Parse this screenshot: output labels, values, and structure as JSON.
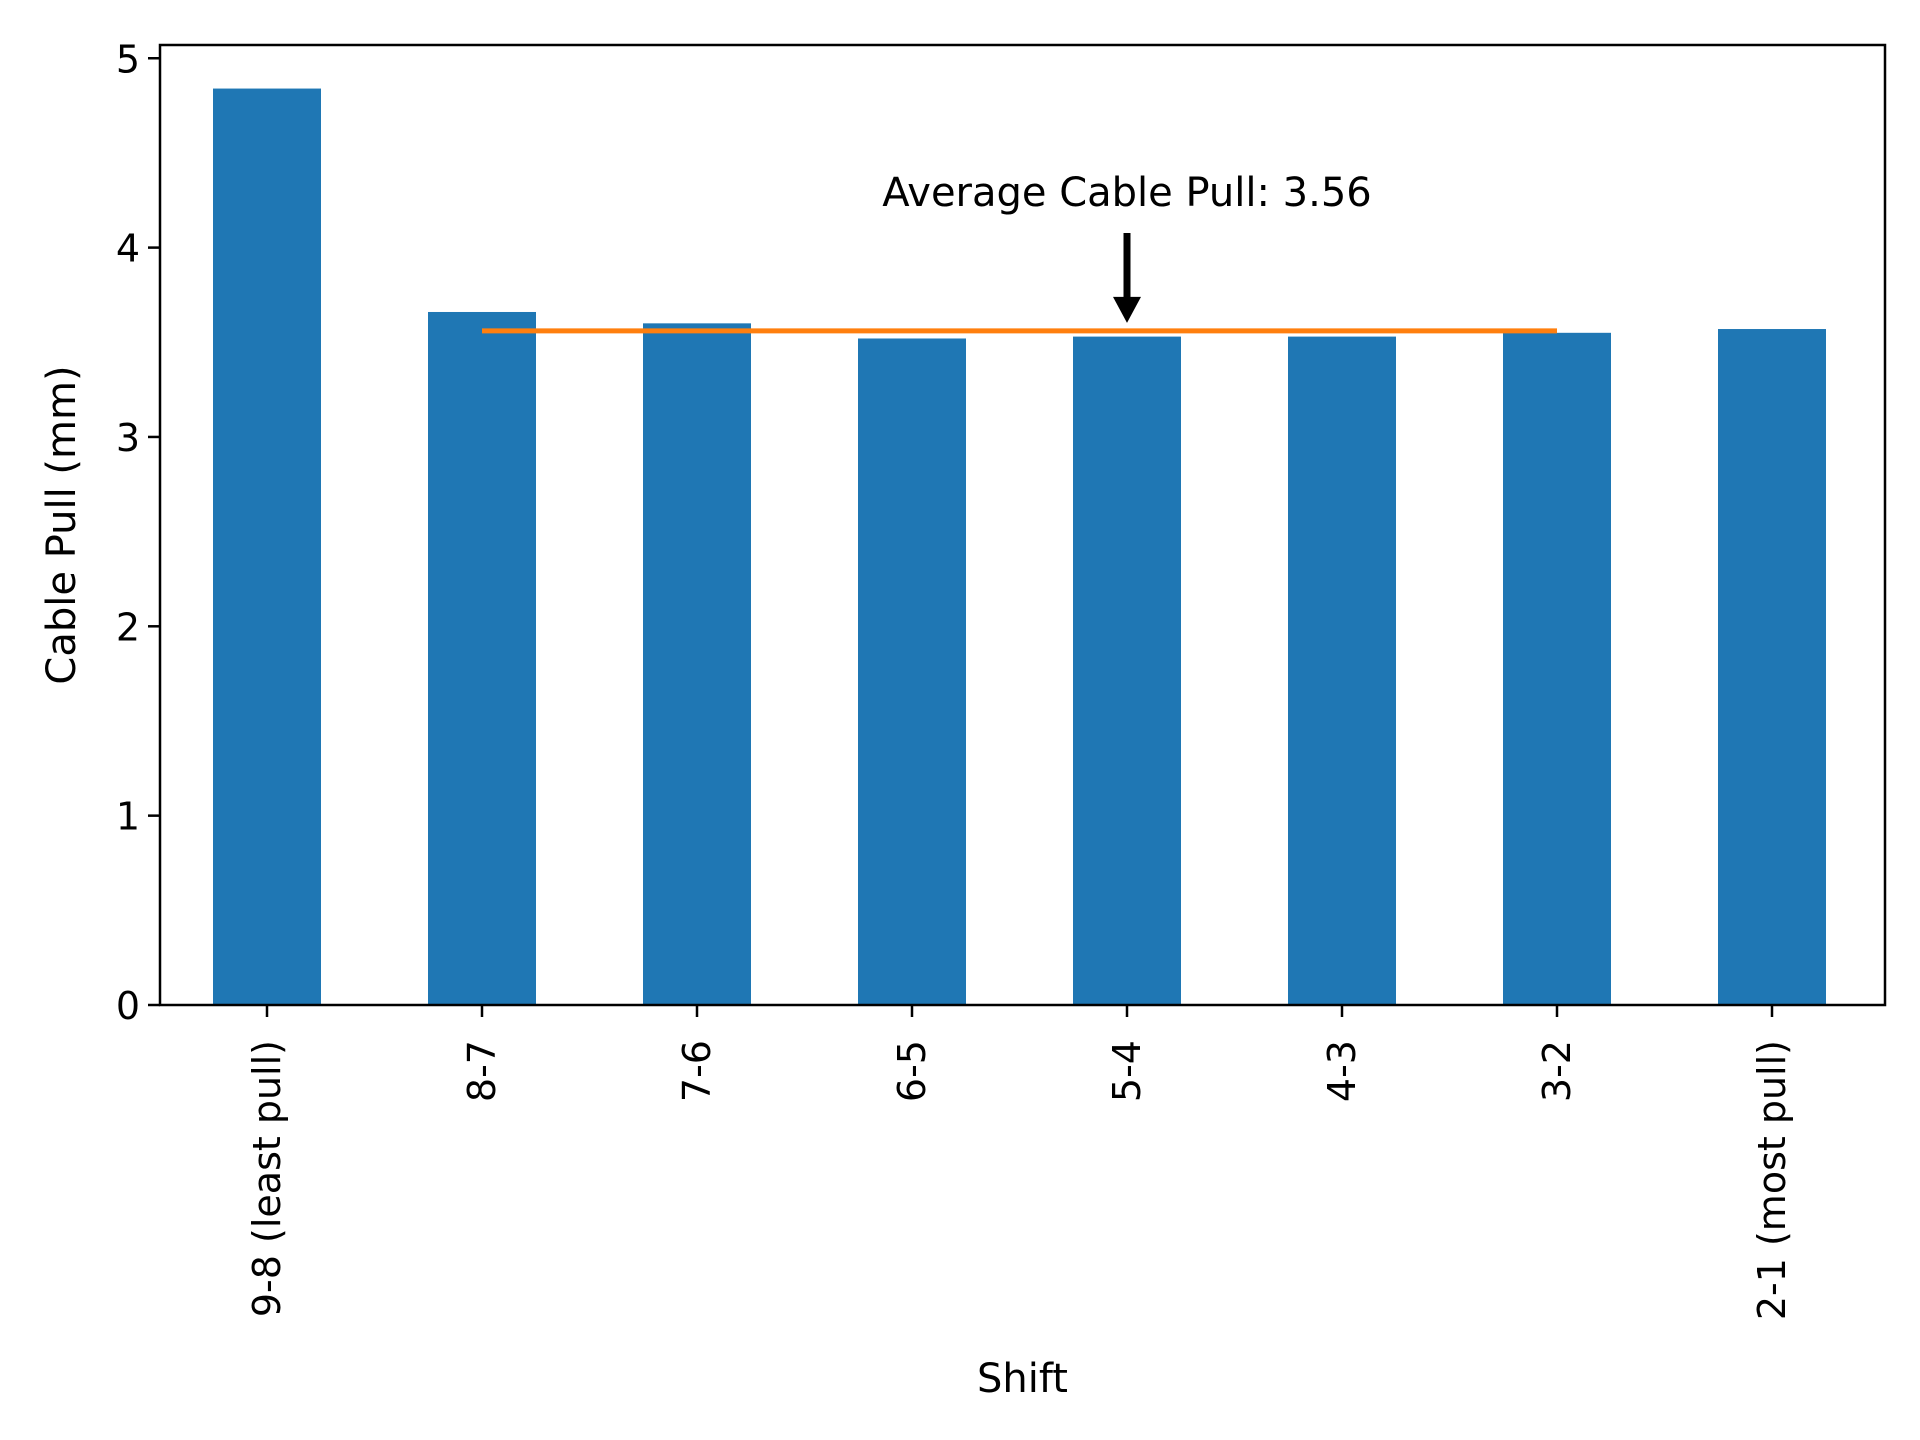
{
  "chart_data": {
    "type": "bar",
    "xlabel": "Shift",
    "ylabel": "Cable Pull (mm)",
    "categories": [
      "9-8 (least pull)",
      "8-7",
      "7-6",
      "6-5",
      "5-4",
      "4-3",
      "3-2",
      "2-1 (most pull)"
    ],
    "values": [
      4.84,
      3.66,
      3.6,
      3.52,
      3.53,
      3.53,
      3.55,
      3.57
    ],
    "ylim": [
      0,
      5.07
    ],
    "yticks": [
      0,
      1,
      2,
      3,
      4,
      5
    ],
    "bar_color": "#1f77b4",
    "average": {
      "value": 3.56,
      "color": "#ff7f0e",
      "from_category": "8-7",
      "to_category": "3-2",
      "annotation": "Average Cable Pull: 3.56",
      "arrow_at_category": "5-4",
      "arrow_color": "#000000"
    },
    "grid": false,
    "legend": "none"
  }
}
